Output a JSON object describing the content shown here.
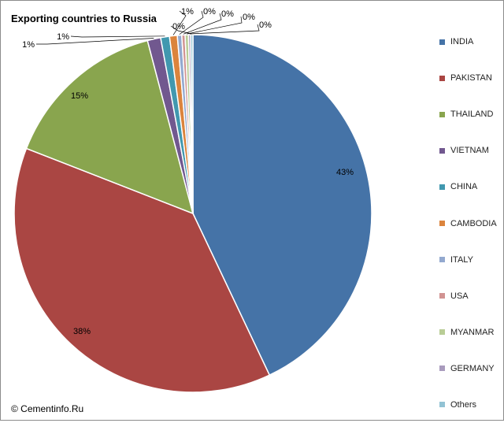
{
  "chart_data": {
    "type": "pie",
    "title": "Exporting countries to Russia",
    "legend_position": "right",
    "slices": [
      {
        "name": "INDIA",
        "value": 43.0,
        "label": "43%",
        "color": "#4573a7"
      },
      {
        "name": "PAKISTAN",
        "value": 38.0,
        "label": "38%",
        "color": "#aa4643"
      },
      {
        "name": "THAILAND",
        "value": 15.0,
        "label": "15%",
        "color": "#89a54e"
      },
      {
        "name": "VIETNAM",
        "value": 1.2,
        "label": "1%",
        "color": "#71588f"
      },
      {
        "name": "CHINA",
        "value": 0.8,
        "label": "1%",
        "color": "#4198af"
      },
      {
        "name": "CAMBODIA",
        "value": 0.7,
        "label": "1%",
        "color": "#db843d"
      },
      {
        "name": "ITALY",
        "value": 0.4,
        "label": "0%",
        "color": "#93a9cf"
      },
      {
        "name": "USA",
        "value": 0.3,
        "label": "0%",
        "color": "#d19392"
      },
      {
        "name": "MYANMAR",
        "value": 0.3,
        "label": "0%",
        "color": "#b9cd96"
      },
      {
        "name": "GERMANY",
        "value": 0.2,
        "label": "0%",
        "color": "#a99bbd"
      },
      {
        "name": "Others",
        "value": 0.2,
        "label": "0%",
        "color": "#92c3d4"
      }
    ]
  },
  "credit": "© Cementinfo.Ru"
}
